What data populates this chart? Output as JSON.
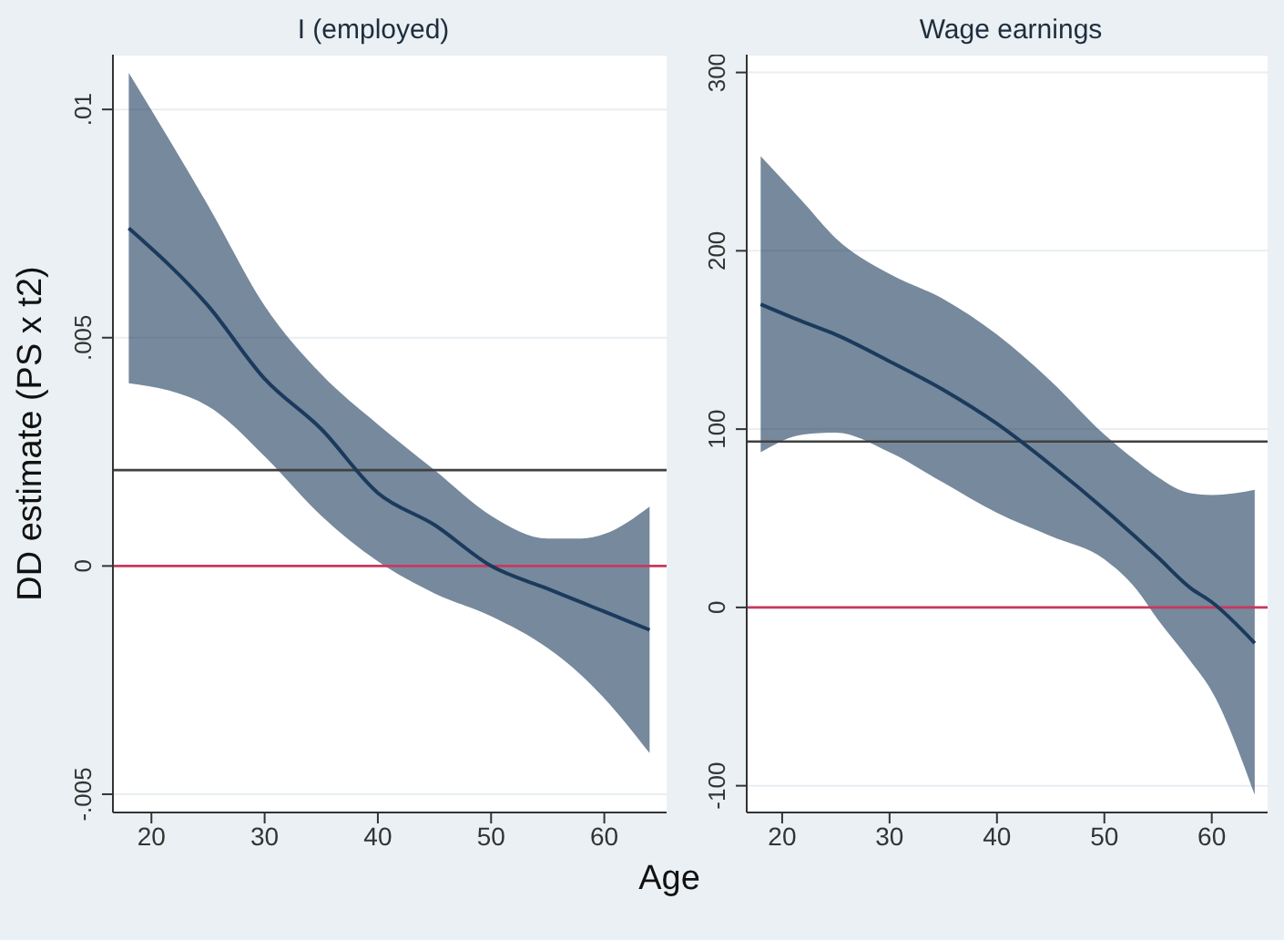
{
  "chart_data": [
    {
      "type": "line",
      "title": "I (employed)",
      "xlabel": "Age",
      "ylabel": "DD estimate (PS x t2)",
      "x": [
        18,
        25,
        30,
        35,
        40,
        45,
        50,
        55,
        58,
        60,
        64
      ],
      "xlim": [
        16.6,
        65.5
      ],
      "xticks": [
        20,
        30,
        40,
        50,
        60
      ],
      "ylim": [
        -0.0054,
        0.0112
      ],
      "yticks": [
        {
          "value": -0.005,
          "label": "-.005"
        },
        {
          "value": 0,
          "label": "0"
        },
        {
          "value": 0.005,
          "label": ".005"
        },
        {
          "value": 0.01,
          "label": ".01"
        }
      ],
      "grid": "y",
      "marker": "none",
      "line_style": "solid",
      "series": [
        {
          "color": "#1b3a5c",
          "values": [
            0.0074,
            0.0057,
            0.0041,
            0.003,
            0.0016,
            0.0009,
            0,
            -0.0005,
            -0.0008,
            -0.001,
            -0.0014
          ],
          "lower": [
            0.004,
            0.0035,
            0.0024,
            0.0011,
            0.0001,
            -0.0006,
            -0.0011,
            -0.0018,
            -0.0024,
            -0.0029,
            -0.0041
          ],
          "upper": [
            0.0108,
            0.0079,
            0.0057,
            0.0042,
            0.0031,
            0.0021,
            0.0011,
            0.0006,
            0.0006,
            0.0007,
            0.0013
          ]
        }
      ],
      "ref_lines": [
        {
          "axis": "y",
          "value": 0.0021,
          "color": "#404040"
        },
        {
          "axis": "y",
          "value": 0,
          "color": "#c8385e"
        }
      ]
    },
    {
      "type": "line",
      "title": "Wage earnings",
      "x": [
        18,
        22,
        25,
        30,
        35,
        40,
        45,
        50,
        53,
        55,
        58,
        60,
        64
      ],
      "xlim": [
        16.7,
        65.2
      ],
      "xticks": [
        20,
        30,
        40,
        50,
        60
      ],
      "ylim": [
        -115,
        310
      ],
      "yticks": [
        -100,
        0,
        100,
        200,
        300
      ],
      "grid": "y",
      "marker": "none",
      "line_style": "solid",
      "series": [
        {
          "color": "#1b3a5c",
          "values": [
            170,
            160,
            153,
            138,
            122,
            103,
            80,
            55,
            39,
            28,
            11,
            3,
            -20
          ],
          "lower": [
            87,
            97,
            98,
            87,
            70,
            53,
            40,
            27,
            10,
            -7,
            -30,
            -47,
            -105
          ],
          "upper": [
            253,
            227,
            207,
            187,
            173,
            153,
            127,
            97,
            82,
            73,
            64,
            63,
            66
          ]
        }
      ],
      "ref_lines": [
        {
          "axis": "y",
          "value": 93,
          "color": "#404040"
        },
        {
          "axis": "y",
          "value": 0,
          "color": "#c8385e"
        }
      ]
    }
  ]
}
